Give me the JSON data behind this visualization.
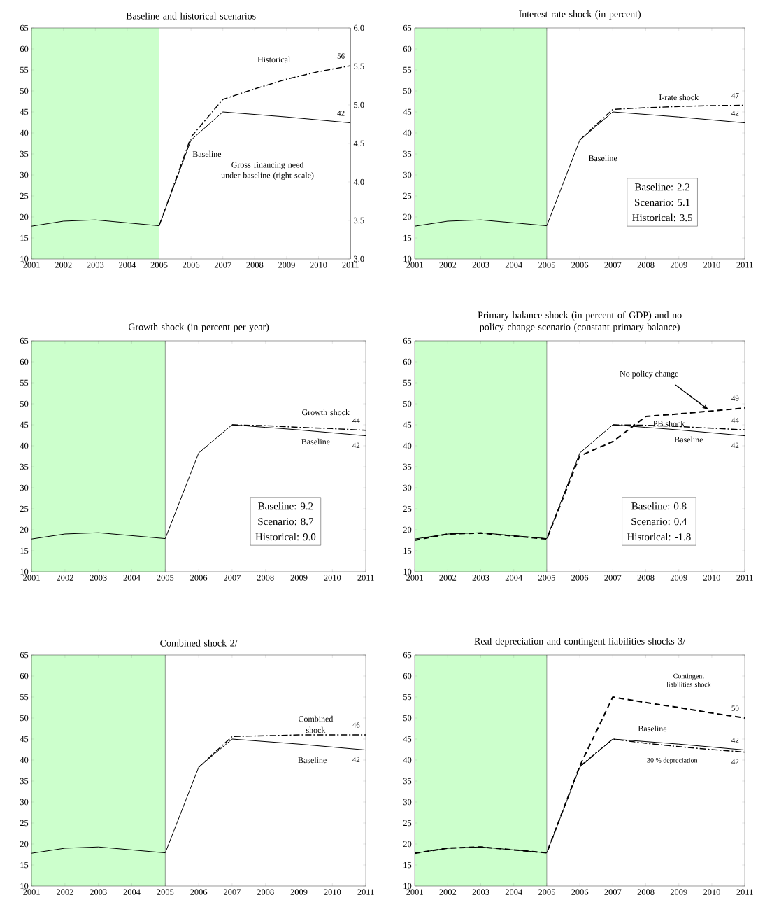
{
  "chart_data": [
    {
      "type": "line",
      "title": "Baseline and historical scenarios",
      "xlim": [
        2001,
        2011
      ],
      "ylim": [
        10,
        65
      ],
      "xticks": [
        2001,
        2002,
        2003,
        2004,
        2005,
        2006,
        2007,
        2008,
        2009,
        2010,
        2011
      ],
      "yticks": [
        10,
        15,
        20,
        25,
        30,
        35,
        40,
        45,
        50,
        55,
        60,
        65
      ],
      "y2lim": [
        3,
        6
      ],
      "y2ticks": [
        {
          "value": 3,
          "label": "3.0"
        },
        {
          "value": 3.5,
          "label": "3.5"
        },
        {
          "value": 4,
          "label": "4.0"
        },
        {
          "value": 4.5,
          "label": "4.5"
        },
        {
          "value": 5,
          "label": "5.0"
        },
        {
          "value": 5.5,
          "label": "5.5"
        },
        {
          "value": 6,
          "label": "6.0"
        }
      ],
      "bands": [
        {
          "axis": "x",
          "from": 2001,
          "to": 2005,
          "color": "#ccffcc"
        }
      ],
      "ref_lines": [
        {
          "axis": "x",
          "value": 2005
        }
      ],
      "annotations": [
        "Gross financing need under baseline (right scale)"
      ],
      "series": [
        {
          "name": "Baseline",
          "color": "#000000",
          "line_style": "solid",
          "x": [
            2001,
            2002,
            2003,
            2004,
            2005,
            2006,
            2007,
            2008,
            2009,
            2010,
            2011
          ],
          "values": [
            17.8,
            19,
            19.3,
            18.6,
            17.9,
            38.3,
            45,
            44.4,
            43.8,
            43.1,
            42.4
          ],
          "value_labels": [
            null,
            null,
            null,
            null,
            null,
            null,
            null,
            null,
            null,
            null,
            "42"
          ]
        },
        {
          "name": "Historical",
          "color": "#000000",
          "line_style": "dashdot",
          "x": [
            2005,
            2006,
            2007,
            2008,
            2009,
            2010,
            2011
          ],
          "values": [
            17.9,
            39,
            48,
            50.5,
            52.8,
            54.6,
            56
          ],
          "value_labels": [
            null,
            null,
            null,
            null,
            null,
            null,
            "56"
          ]
        }
      ]
    },
    {
      "type": "line",
      "title": "Interest rate shock (in percent)",
      "xlim": [
        2001,
        2011
      ],
      "ylim": [
        10,
        65
      ],
      "xticks": [
        2001,
        2002,
        2003,
        2004,
        2005,
        2006,
        2007,
        2008,
        2009,
        2010,
        2011
      ],
      "yticks": [
        10,
        15,
        20,
        25,
        30,
        35,
        40,
        45,
        50,
        55,
        60,
        65
      ],
      "bands": [
        {
          "axis": "x",
          "from": 2001,
          "to": 2005,
          "color": "#ccffcc"
        }
      ],
      "ref_lines": [
        {
          "axis": "x",
          "value": 2005
        }
      ],
      "annotations": [
        "Baseline:   2.2",
        "Scenario:   5.1",
        "Historical:   3.5"
      ],
      "series": [
        {
          "name": "Baseline",
          "color": "#000000",
          "line_style": "solid",
          "x": [
            2001,
            2002,
            2003,
            2004,
            2005,
            2006,
            2007,
            2008,
            2009,
            2010,
            2011
          ],
          "values": [
            17.8,
            19,
            19.3,
            18.6,
            17.9,
            38.3,
            45,
            44.4,
            43.8,
            43.1,
            42.4
          ],
          "value_labels": [
            null,
            null,
            null,
            null,
            null,
            null,
            null,
            null,
            null,
            null,
            "42"
          ]
        },
        {
          "name": "I-rate shock",
          "color": "#000000",
          "line_style": "dashdot",
          "x": [
            2006,
            2007,
            2008,
            2009,
            2010,
            2011
          ],
          "values": [
            38.3,
            45.6,
            46,
            46.3,
            46.5,
            46.6
          ],
          "value_labels": [
            null,
            null,
            null,
            null,
            null,
            "47"
          ]
        }
      ]
    },
    {
      "type": "line",
      "title": "Growth shock (in percent per year)",
      "xlim": [
        2001,
        2011
      ],
      "ylim": [
        10,
        65
      ],
      "xticks": [
        2001,
        2002,
        2003,
        2004,
        2005,
        2006,
        2007,
        2008,
        2009,
        2010,
        2011
      ],
      "yticks": [
        10,
        15,
        20,
        25,
        30,
        35,
        40,
        45,
        50,
        55,
        60,
        65
      ],
      "bands": [
        {
          "axis": "x",
          "from": 2001,
          "to": 2005,
          "color": "#ccffcc"
        }
      ],
      "ref_lines": [
        {
          "axis": "x",
          "value": 2005
        }
      ],
      "annotations": [
        "Baseline:   9.2",
        "Scenario:   8.7",
        "Historical:   9.0"
      ],
      "series": [
        {
          "name": "Baseline",
          "color": "#000000",
          "line_style": "solid",
          "x": [
            2001,
            2002,
            2003,
            2004,
            2005,
            2006,
            2007,
            2008,
            2009,
            2010,
            2011
          ],
          "values": [
            17.8,
            19,
            19.3,
            18.6,
            17.9,
            38.3,
            45,
            44.4,
            43.8,
            43.1,
            42.4
          ],
          "value_labels": [
            null,
            null,
            null,
            null,
            null,
            null,
            null,
            null,
            null,
            null,
            "42"
          ]
        },
        {
          "name": "Growth shock",
          "color": "#000000",
          "line_style": "dashdot",
          "x": [
            2007,
            2008,
            2009,
            2010,
            2011
          ],
          "values": [
            45,
            44.8,
            44.4,
            44.1,
            43.7
          ],
          "value_labels": [
            null,
            null,
            null,
            null,
            "44"
          ]
        }
      ]
    },
    {
      "type": "line",
      "title": "Primary balance shock (in percent of GDP) and no policy change scenario (constant primary balance)",
      "xlim": [
        2001,
        2011
      ],
      "ylim": [
        10,
        65
      ],
      "xticks": [
        2001,
        2002,
        2003,
        2004,
        2005,
        2006,
        2007,
        2008,
        2009,
        2010,
        2011
      ],
      "yticks": [
        10,
        15,
        20,
        25,
        30,
        35,
        40,
        45,
        50,
        55,
        60,
        65
      ],
      "bands": [
        {
          "axis": "x",
          "from": 2001,
          "to": 2005,
          "color": "#ccffcc"
        }
      ],
      "ref_lines": [
        {
          "axis": "x",
          "value": 2005
        }
      ],
      "annotations": [
        "Baseline:   0.8",
        "Scenario:   0.4",
        "Historical:   -1.8"
      ],
      "series": [
        {
          "name": "Baseline",
          "color": "#000000",
          "line_style": "solid",
          "x": [
            2001,
            2002,
            2003,
            2004,
            2005,
            2006,
            2007,
            2008,
            2009,
            2010,
            2011
          ],
          "values": [
            17.8,
            19,
            19.3,
            18.6,
            17.9,
            38.3,
            45,
            44.4,
            43.8,
            43.1,
            42.4
          ],
          "value_labels": [
            null,
            null,
            null,
            null,
            null,
            null,
            null,
            null,
            null,
            null,
            "42"
          ]
        },
        {
          "name": "No policy change",
          "color": "#000000",
          "line_style": "dashed",
          "x": [
            2001,
            2002,
            2003,
            2004,
            2005,
            2006,
            2007,
            2008,
            2009,
            2010,
            2011
          ],
          "values": [
            17.5,
            19,
            19.2,
            18.5,
            17.8,
            37.6,
            41,
            47,
            47.6,
            48.3,
            49
          ],
          "value_labels": [
            null,
            null,
            null,
            null,
            null,
            null,
            null,
            null,
            null,
            null,
            "49"
          ]
        },
        {
          "name": "PB shock",
          "color": "#000000",
          "line_style": "dashdot",
          "x": [
            2007,
            2008,
            2009,
            2010,
            2011
          ],
          "values": [
            45,
            44.9,
            44.6,
            44.2,
            43.8
          ],
          "value_labels": [
            null,
            null,
            null,
            null,
            "44"
          ]
        }
      ]
    },
    {
      "type": "line",
      "title": "Combined shock  2/",
      "xlim": [
        2001,
        2011
      ],
      "ylim": [
        10,
        65
      ],
      "xticks": [
        2001,
        2002,
        2003,
        2004,
        2005,
        2006,
        2007,
        2008,
        2009,
        2010,
        2011
      ],
      "yticks": [
        10,
        15,
        20,
        25,
        30,
        35,
        40,
        45,
        50,
        55,
        60,
        65
      ],
      "bands": [
        {
          "axis": "x",
          "from": 2001,
          "to": 2005,
          "color": "#ccffcc"
        }
      ],
      "ref_lines": [
        {
          "axis": "x",
          "value": 2005
        }
      ],
      "series": [
        {
          "name": "Baseline",
          "color": "#000000",
          "line_style": "solid",
          "x": [
            2001,
            2002,
            2003,
            2004,
            2005,
            2006,
            2007,
            2008,
            2009,
            2010,
            2011
          ],
          "values": [
            17.8,
            19,
            19.3,
            18.6,
            17.9,
            38.3,
            45,
            44.4,
            43.8,
            43.1,
            42.4
          ],
          "value_labels": [
            null,
            null,
            null,
            null,
            null,
            null,
            null,
            null,
            null,
            null,
            "42"
          ]
        },
        {
          "name": "Combined shock",
          "color": "#000000",
          "line_style": "dashdot",
          "x": [
            2006,
            2007,
            2008,
            2009,
            2010,
            2011
          ],
          "values": [
            38.3,
            45.6,
            45.8,
            46,
            46,
            46
          ],
          "value_labels": [
            null,
            null,
            null,
            null,
            null,
            "46"
          ]
        }
      ]
    },
    {
      "type": "line",
      "title": "Real depreciation and contingent liabilities shocks  3/",
      "xlim": [
        2001,
        2011
      ],
      "ylim": [
        10,
        65
      ],
      "xticks": [
        2001,
        2002,
        2003,
        2004,
        2005,
        2006,
        2007,
        2008,
        2009,
        2010,
        2011
      ],
      "yticks": [
        10,
        15,
        20,
        25,
        30,
        35,
        40,
        45,
        50,
        55,
        60,
        65
      ],
      "bands": [
        {
          "axis": "x",
          "from": 2001,
          "to": 2005,
          "color": "#ccffcc"
        }
      ],
      "ref_lines": [
        {
          "axis": "x",
          "value": 2005
        }
      ],
      "series": [
        {
          "name": "Baseline",
          "color": "#000000",
          "line_style": "solid",
          "x": [
            2001,
            2002,
            2003,
            2004,
            2005,
            2006,
            2007,
            2008,
            2009,
            2010,
            2011
          ],
          "values": [
            17.8,
            19,
            19.3,
            18.6,
            17.9,
            38.3,
            45,
            44.4,
            43.8,
            43.1,
            42.4
          ],
          "value_labels": [
            null,
            null,
            null,
            null,
            null,
            null,
            null,
            null,
            null,
            null,
            "42"
          ]
        },
        {
          "name": "Contingent liabilities shock",
          "color": "#000000",
          "line_style": "dashed",
          "x": [
            2001,
            2002,
            2003,
            2004,
            2005,
            2006,
            2007,
            2008,
            2009,
            2010,
            2011
          ],
          "values": [
            17.8,
            19,
            19.3,
            18.6,
            17.9,
            38.6,
            55,
            53.7,
            52.5,
            51.2,
            50
          ],
          "value_labels": [
            null,
            null,
            null,
            null,
            null,
            null,
            null,
            null,
            null,
            null,
            "50"
          ]
        },
        {
          "name": "30 % depreciation",
          "color": "#000000",
          "line_style": "dashdot",
          "x": [
            2006,
            2007,
            2008,
            2009,
            2010,
            2011
          ],
          "values": [
            38.5,
            45,
            44,
            43.2,
            42.5,
            41.9
          ],
          "value_labels": [
            null,
            null,
            null,
            null,
            null,
            "42"
          ]
        }
      ]
    }
  ]
}
